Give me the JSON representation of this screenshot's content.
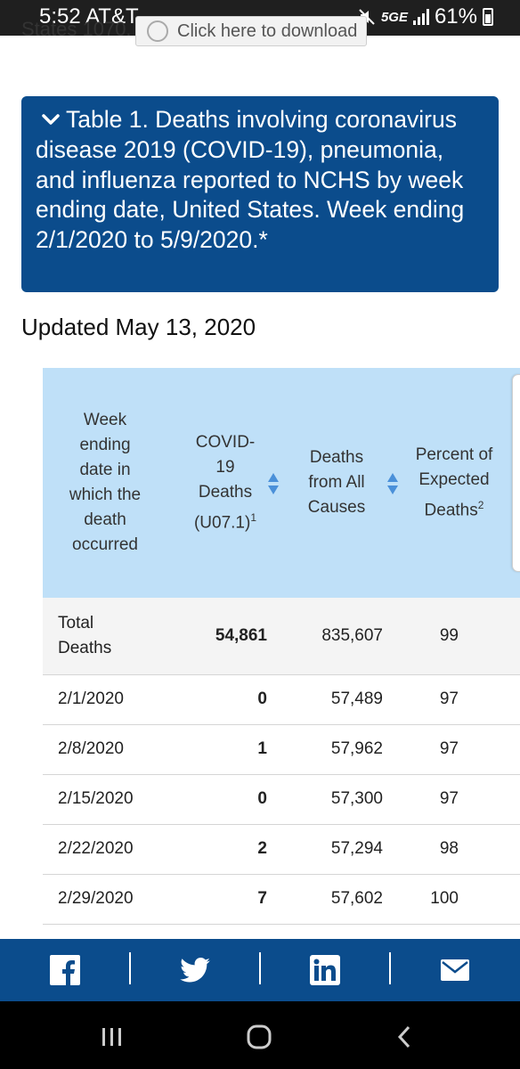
{
  "status_bar": {
    "time": "5:52",
    "carrier": "AT&T",
    "network": "5GE",
    "battery": "61%"
  },
  "download_row": {
    "label": "States 1070.",
    "button_label": "Click here to download"
  },
  "accordion": {
    "title": "Table 1. Deaths involving coronavirus disease 2019 (COVID-19), pneumonia, and influenza reported to NCHS by week ending date, United States. Week ending 2/1/2020 to 5/9/2020.*"
  },
  "updated": "Updated May 13, 2020",
  "table": {
    "columns": {
      "week": "Week ending date in which the death occurred",
      "covid": "COVID-19 Deaths (U07.1)",
      "covid_sup": "1",
      "all_causes": "Deaths from All Causes",
      "percent": "Percent of Expected Deaths",
      "percent_sup": "2"
    },
    "total": {
      "label": "Total Deaths",
      "covid": "54,861",
      "all_causes": "835,607",
      "percent": "99"
    },
    "rows": [
      {
        "week": "2/1/2020",
        "covid": "0",
        "all_causes": "57,489",
        "percent": "97"
      },
      {
        "week": "2/8/2020",
        "covid": "1",
        "all_causes": "57,962",
        "percent": "97"
      },
      {
        "week": "2/15/2020",
        "covid": "0",
        "all_causes": "57,300",
        "percent": "97"
      },
      {
        "week": "2/22/2020",
        "covid": "2",
        "all_causes": "57,294",
        "percent": "98"
      },
      {
        "week": "2/29/2020",
        "covid": "7",
        "all_causes": "57,602",
        "percent": "100"
      }
    ]
  },
  "share_bar": {
    "items": [
      "facebook-icon",
      "twitter-icon",
      "linkedin-icon",
      "email-icon"
    ],
    "color": "#0b4c8c"
  },
  "nav_bar": {
    "items": [
      "recent-apps-icon",
      "home-icon",
      "back-icon"
    ]
  }
}
